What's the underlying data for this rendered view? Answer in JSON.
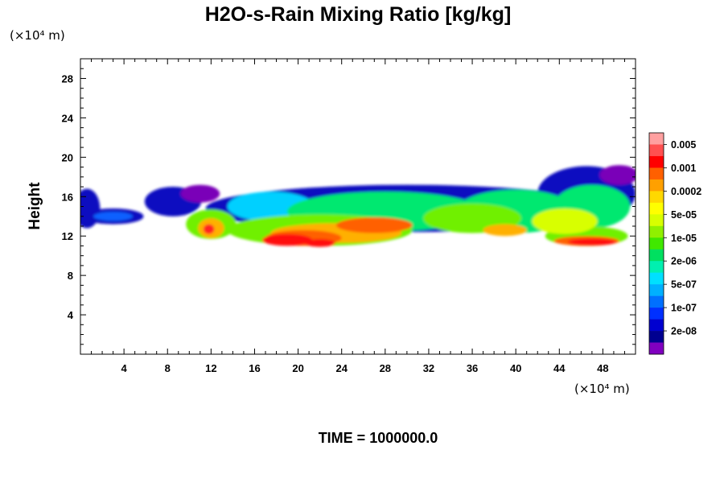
{
  "chart_data": {
    "type": "heatmap",
    "title": "H2O-s-Rain Mixing Ratio [kg/kg]",
    "ylabel": "Height",
    "xlabel": "",
    "x_unit_label": "(×10⁴ m)",
    "y_unit_label": "(×10⁴ m)",
    "xlim": [
      0,
      51
    ],
    "ylim": [
      0,
      30
    ],
    "x_ticks": [
      4,
      8,
      12,
      16,
      20,
      24,
      28,
      32,
      36,
      40,
      44,
      48
    ],
    "y_ticks": [
      4,
      8,
      12,
      16,
      20,
      24,
      28
    ],
    "colorbar": {
      "labels": [
        "0.005",
        "0.001",
        "0.0002",
        "5e-05",
        "1e-05",
        "2e-06",
        "5e-07",
        "1e-07",
        "2e-08"
      ],
      "colors_top_to_bottom": [
        "#ffa0a0",
        "#ff5050",
        "#ff0000",
        "#ff6000",
        "#ffa000",
        "#ffd800",
        "#ffff00",
        "#d8ff00",
        "#90f000",
        "#40e800",
        "#00e060",
        "#00f0b0",
        "#00e0ff",
        "#00b0ff",
        "#0070ff",
        "#0030ff",
        "#0000d0",
        "#000090",
        "#8000c0"
      ]
    },
    "footer": "TIME = 1000000.0",
    "field_cells": [
      {
        "x": 0.6,
        "y": 14.8,
        "rx": 1.2,
        "ry": 2.0,
        "level": 1
      },
      {
        "x": 3.0,
        "y": 14.0,
        "rx": 2.8,
        "ry": 0.8,
        "level": 1
      },
      {
        "x": 3.0,
        "y": 14.0,
        "rx": 1.8,
        "ry": 0.45,
        "level": 2
      },
      {
        "x": 8.5,
        "y": 15.5,
        "rx": 2.6,
        "ry": 1.5,
        "level": 1
      },
      {
        "x": 11.0,
        "y": 16.3,
        "rx": 1.8,
        "ry": 0.9,
        "level": 0
      },
      {
        "x": 30.0,
        "y": 14.8,
        "rx": 18.5,
        "ry": 2.4,
        "level": 1
      },
      {
        "x": 46.5,
        "y": 16.3,
        "rx": 4.5,
        "ry": 2.8,
        "level": 1
      },
      {
        "x": 49.5,
        "y": 18.2,
        "rx": 1.8,
        "ry": 1.0,
        "level": 0
      },
      {
        "x": 17.5,
        "y": 15.0,
        "rx": 4.0,
        "ry": 1.5,
        "level": 3
      },
      {
        "x": 28.0,
        "y": 14.5,
        "rx": 9.0,
        "ry": 2.0,
        "level": 4
      },
      {
        "x": 40.0,
        "y": 14.5,
        "rx": 5.5,
        "ry": 2.2,
        "level": 4
      },
      {
        "x": 47.0,
        "y": 15.0,
        "rx": 3.5,
        "ry": 2.2,
        "level": 4
      },
      {
        "x": 12.0,
        "y": 13.2,
        "rx": 2.3,
        "ry": 1.5,
        "level": 5
      },
      {
        "x": 22.0,
        "y": 12.6,
        "rx": 8.5,
        "ry": 1.6,
        "level": 5
      },
      {
        "x": 36.0,
        "y": 13.8,
        "rx": 4.5,
        "ry": 1.5,
        "level": 5
      },
      {
        "x": 46.5,
        "y": 12.0,
        "rx": 3.8,
        "ry": 1.0,
        "level": 5
      },
      {
        "x": 44.5,
        "y": 13.5,
        "rx": 3.0,
        "ry": 1.3,
        "level": 6
      },
      {
        "x": 23.5,
        "y": 12.3,
        "rx": 6.0,
        "ry": 1.0,
        "level": 7
      },
      {
        "x": 12.0,
        "y": 12.8,
        "rx": 1.2,
        "ry": 1.0,
        "level": 7
      },
      {
        "x": 39.0,
        "y": 12.6,
        "rx": 2.0,
        "ry": 0.6,
        "level": 7
      },
      {
        "x": 27.0,
        "y": 13.1,
        "rx": 3.5,
        "ry": 0.8,
        "level": 8
      },
      {
        "x": 20.5,
        "y": 11.8,
        "rx": 3.5,
        "ry": 0.8,
        "level": 8
      },
      {
        "x": 46.5,
        "y": 11.5,
        "rx": 3.0,
        "ry": 0.5,
        "level": 8
      },
      {
        "x": 19.0,
        "y": 11.6,
        "rx": 2.3,
        "ry": 0.6,
        "level": 9
      },
      {
        "x": 22.0,
        "y": 11.3,
        "rx": 1.4,
        "ry": 0.4,
        "level": 9
      },
      {
        "x": 47.0,
        "y": 11.4,
        "rx": 2.2,
        "ry": 0.35,
        "level": 9
      },
      {
        "x": 11.8,
        "y": 12.7,
        "rx": 0.5,
        "ry": 0.5,
        "level": 10
      }
    ],
    "level_colors": [
      "#7a00b8",
      "#1010c0",
      "#1060ff",
      "#00d0ff",
      "#00e870",
      "#70f000",
      "#d8ff00",
      "#ffb000",
      "#ff6000",
      "#ff1010",
      "#ff2020"
    ]
  }
}
